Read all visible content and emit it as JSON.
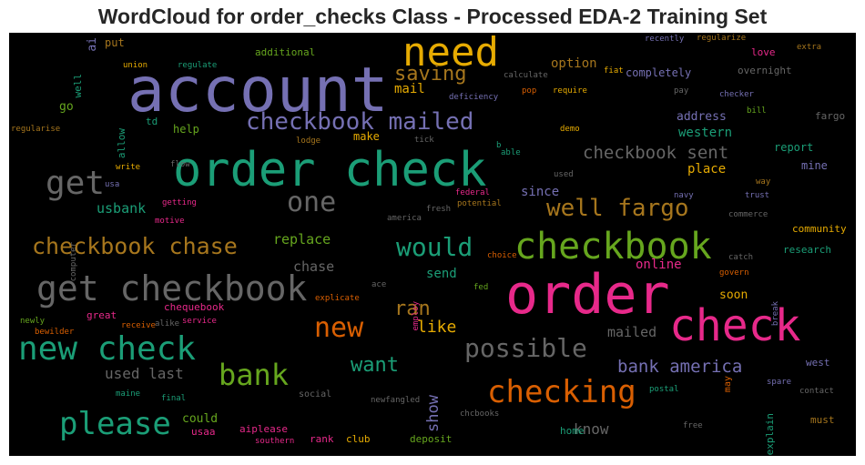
{
  "title": "WordCloud for order_checks Class - Processed EDA-2 Training Set",
  "colors": {
    "background": "#000000",
    "title": "#262626",
    "palette": [
      "#7570b3",
      "#1b9e77",
      "#d95f02",
      "#e7298a",
      "#66a61e",
      "#e6ab02",
      "#a6761d",
      "#666666"
    ]
  },
  "chart_data": {
    "type": "wordcloud",
    "title": "WordCloud for order_checks Class - Processed EDA-2 Training Set",
    "words": [
      {
        "text": "account",
        "weight": 68,
        "color": "#7570b3"
      },
      {
        "text": "order check",
        "weight": 52,
        "color": "#1b9e77"
      },
      {
        "text": "order",
        "weight": 60,
        "color": "#e7298a"
      },
      {
        "text": "check",
        "weight": 48,
        "color": "#e7298a"
      },
      {
        "text": "need",
        "weight": 44,
        "color": "#e6ab02"
      },
      {
        "text": "checkbook",
        "weight": 40,
        "color": "#66a61e"
      },
      {
        "text": "get checkbook",
        "weight": 38,
        "color": "#666666"
      },
      {
        "text": "new check",
        "weight": 36,
        "color": "#1b9e77"
      },
      {
        "text": "get",
        "weight": 36,
        "color": "#666666"
      },
      {
        "text": "please",
        "weight": 34,
        "color": "#1b9e77"
      },
      {
        "text": "checking",
        "weight": 34,
        "color": "#d95f02"
      },
      {
        "text": "bank",
        "weight": 32,
        "color": "#66a61e"
      },
      {
        "text": "one",
        "weight": 30,
        "color": "#666666"
      },
      {
        "text": "new",
        "weight": 30,
        "color": "#d95f02"
      },
      {
        "text": "possible",
        "weight": 28,
        "color": "#666666"
      },
      {
        "text": "would",
        "weight": 28,
        "color": "#1b9e77"
      },
      {
        "text": "checkbook mailed",
        "weight": 26,
        "color": "#7570b3"
      },
      {
        "text": "well fargo",
        "weight": 26,
        "color": "#a6761d"
      },
      {
        "text": "checkbook chase",
        "weight": 25,
        "color": "#a6761d"
      },
      {
        "text": "saving",
        "weight": 22,
        "color": "#a6761d"
      },
      {
        "text": "ran",
        "weight": 22,
        "color": "#a6761d"
      },
      {
        "text": "want",
        "weight": 22,
        "color": "#1b9e77"
      },
      {
        "text": "bank america",
        "weight": 19,
        "color": "#7570b3"
      },
      {
        "text": "checkbook sent",
        "weight": 19,
        "color": "#666666"
      },
      {
        "text": "like",
        "weight": 18,
        "color": "#e6ab02"
      },
      {
        "text": "show",
        "weight": 17,
        "color": "#7570b3"
      },
      {
        "text": "used last",
        "weight": 16,
        "color": "#666666"
      },
      {
        "text": "know",
        "weight": 16,
        "color": "#666666"
      },
      {
        "text": "mailed",
        "weight": 15,
        "color": "#666666"
      },
      {
        "text": "replace",
        "weight": 15,
        "color": "#66a61e"
      },
      {
        "text": "chase",
        "weight": 15,
        "color": "#666666"
      },
      {
        "text": "usbank",
        "weight": 15,
        "color": "#1b9e77"
      },
      {
        "text": "place",
        "weight": 14,
        "color": "#e6ab02"
      },
      {
        "text": "mail",
        "weight": 14,
        "color": "#e6ab02"
      },
      {
        "text": "online",
        "weight": 14,
        "color": "#e7298a"
      },
      {
        "text": "send",
        "weight": 14,
        "color": "#1b9e77"
      },
      {
        "text": "western",
        "weight": 14,
        "color": "#1b9e77"
      },
      {
        "text": "since",
        "weight": 14,
        "color": "#7570b3"
      },
      {
        "text": "option",
        "weight": 14,
        "color": "#a6761d"
      },
      {
        "text": "address",
        "weight": 13,
        "color": "#7570b3"
      },
      {
        "text": "could",
        "weight": 13,
        "color": "#66a61e"
      },
      {
        "text": "go",
        "weight": 13,
        "color": "#66a61e"
      },
      {
        "text": "soon",
        "weight": 13,
        "color": "#e6ab02"
      },
      {
        "text": "ai",
        "weight": 13,
        "color": "#7570b3"
      },
      {
        "text": "put",
        "weight": 12,
        "color": "#a6761d"
      },
      {
        "text": "help",
        "weight": 12,
        "color": "#66a61e"
      },
      {
        "text": "make",
        "weight": 12,
        "color": "#e6ab02"
      },
      {
        "text": "completely",
        "weight": 12,
        "color": "#7570b3"
      },
      {
        "text": "report",
        "weight": 12,
        "color": "#1b9e77"
      },
      {
        "text": "mine",
        "weight": 12,
        "color": "#7570b3"
      },
      {
        "text": "community",
        "weight": 11,
        "color": "#e6ab02"
      },
      {
        "text": "research",
        "weight": 11,
        "color": "#1b9e77"
      },
      {
        "text": "well",
        "weight": 11,
        "color": "#1b9e77"
      },
      {
        "text": "td",
        "weight": 11,
        "color": "#1b9e77"
      },
      {
        "text": "fargo",
        "weight": 11,
        "color": "#666666"
      },
      {
        "text": "overnight",
        "weight": 11,
        "color": "#666666"
      },
      {
        "text": "additional",
        "weight": 11,
        "color": "#66a61e"
      },
      {
        "text": "love",
        "weight": 11,
        "color": "#e7298a"
      },
      {
        "text": "aiplease",
        "weight": 11,
        "color": "#e7298a"
      },
      {
        "text": "usaa",
        "weight": 11,
        "color": "#e7298a"
      },
      {
        "text": "home",
        "weight": 11,
        "color": "#1b9e77"
      },
      {
        "text": "deposit",
        "weight": 11,
        "color": "#66a61e"
      },
      {
        "text": "club",
        "weight": 11,
        "color": "#e6ab02"
      },
      {
        "text": "rank",
        "weight": 11,
        "color": "#e7298a"
      },
      {
        "text": "must",
        "weight": 11,
        "color": "#a6761d"
      },
      {
        "text": "west",
        "weight": 11,
        "color": "#7570b3"
      },
      {
        "text": "explain",
        "weight": 11,
        "color": "#1b9e77"
      },
      {
        "text": "allow",
        "weight": 11,
        "color": "#1b9e77"
      },
      {
        "text": "great",
        "weight": 11,
        "color": "#e7298a"
      },
      {
        "text": "chequebook",
        "weight": 11,
        "color": "#e7298a"
      },
      {
        "text": "social",
        "weight": 10,
        "color": "#666666"
      },
      {
        "text": "may",
        "weight": 10,
        "color": "#d95f02"
      },
      {
        "text": "mailed",
        "weight": 10,
        "color": "#666666"
      },
      {
        "text": "recently",
        "weight": 9,
        "color": "#7570b3"
      },
      {
        "text": "regularize",
        "weight": 9,
        "color": "#a6761d"
      },
      {
        "text": "extra",
        "weight": 9,
        "color": "#a6761d"
      },
      {
        "text": "fiat",
        "weight": 9,
        "color": "#e6ab02"
      },
      {
        "text": "union",
        "weight": 9,
        "color": "#e6ab02"
      },
      {
        "text": "regulate",
        "weight": 9,
        "color": "#1b9e77"
      },
      {
        "text": "calculate",
        "weight": 9,
        "color": "#666666"
      },
      {
        "text": "pop",
        "weight": 9,
        "color": "#d95f02"
      },
      {
        "text": "require",
        "weight": 9,
        "color": "#e6ab02"
      },
      {
        "text": "pay",
        "weight": 9,
        "color": "#666666"
      },
      {
        "text": "checker",
        "weight": 9,
        "color": "#7570b3"
      },
      {
        "text": "bill",
        "weight": 9,
        "color": "#66a61e"
      },
      {
        "text": "deficiency",
        "weight": 9,
        "color": "#7570b3"
      },
      {
        "text": "demo",
        "weight": 9,
        "color": "#e6ab02"
      },
      {
        "text": "regularise",
        "weight": 9,
        "color": "#a6761d"
      },
      {
        "text": "lodge",
        "weight": 9,
        "color": "#a6761d"
      },
      {
        "text": "tick",
        "weight": 9,
        "color": "#666666"
      },
      {
        "text": "b",
        "weight": 9,
        "color": "#1b9e77"
      },
      {
        "text": "write",
        "weight": 9,
        "color": "#e6ab02"
      },
      {
        "text": "flow",
        "weight": 9,
        "color": "#666666"
      },
      {
        "text": "able",
        "weight": 9,
        "color": "#1b9e77"
      },
      {
        "text": "used",
        "weight": 9,
        "color": "#666666"
      },
      {
        "text": "way",
        "weight": 9,
        "color": "#a6761d"
      },
      {
        "text": "trust",
        "weight": 9,
        "color": "#7570b3"
      },
      {
        "text": "navy",
        "weight": 9,
        "color": "#7570b3"
      },
      {
        "text": "usa",
        "weight": 9,
        "color": "#7570b3"
      },
      {
        "text": "getting",
        "weight": 9,
        "color": "#e7298a"
      },
      {
        "text": "federal",
        "weight": 9,
        "color": "#e7298a"
      },
      {
        "text": "potential",
        "weight": 9,
        "color": "#a6761d"
      },
      {
        "text": "fresh",
        "weight": 9,
        "color": "#666666"
      },
      {
        "text": "america",
        "weight": 9,
        "color": "#666666"
      },
      {
        "text": "commerce",
        "weight": 9,
        "color": "#666666"
      },
      {
        "text": "computer",
        "weight": 9,
        "color": "#666666"
      },
      {
        "text": "motive",
        "weight": 9,
        "color": "#e7298a"
      },
      {
        "text": "choice",
        "weight": 9,
        "color": "#d95f02"
      },
      {
        "text": "catch",
        "weight": 9,
        "color": "#666666"
      },
      {
        "text": "govern",
        "weight": 9,
        "color": "#d95f02"
      },
      {
        "text": "explicate",
        "weight": 9,
        "color": "#d95f02"
      },
      {
        "text": "ace",
        "weight": 9,
        "color": "#666666"
      },
      {
        "text": "employ",
        "weight": 9,
        "color": "#e7298a"
      },
      {
        "text": "fed",
        "weight": 9,
        "color": "#66a61e"
      },
      {
        "text": "break",
        "weight": 9,
        "color": "#7570b3"
      },
      {
        "text": "newly",
        "weight": 9,
        "color": "#66a61e"
      },
      {
        "text": "receive",
        "weight": 9,
        "color": "#d95f02"
      },
      {
        "text": "alike",
        "weight": 9,
        "color": "#666666"
      },
      {
        "text": "service",
        "weight": 9,
        "color": "#e7298a"
      },
      {
        "text": "bewilder",
        "weight": 9,
        "color": "#d95f02"
      },
      {
        "text": "maine",
        "weight": 9,
        "color": "#1b9e77"
      },
      {
        "text": "final",
        "weight": 9,
        "color": "#1b9e77"
      },
      {
        "text": "newfangled",
        "weight": 9,
        "color": "#666666"
      },
      {
        "text": "chcbooks",
        "weight": 9,
        "color": "#666666"
      },
      {
        "text": "postal",
        "weight": 9,
        "color": "#1b9e77"
      },
      {
        "text": "spare",
        "weight": 9,
        "color": "#7570b3"
      },
      {
        "text": "contact",
        "weight": 9,
        "color": "#666666"
      },
      {
        "text": "free",
        "weight": 9,
        "color": "#666666"
      },
      {
        "text": "southern",
        "weight": 9,
        "color": "#e7298a"
      }
    ]
  }
}
